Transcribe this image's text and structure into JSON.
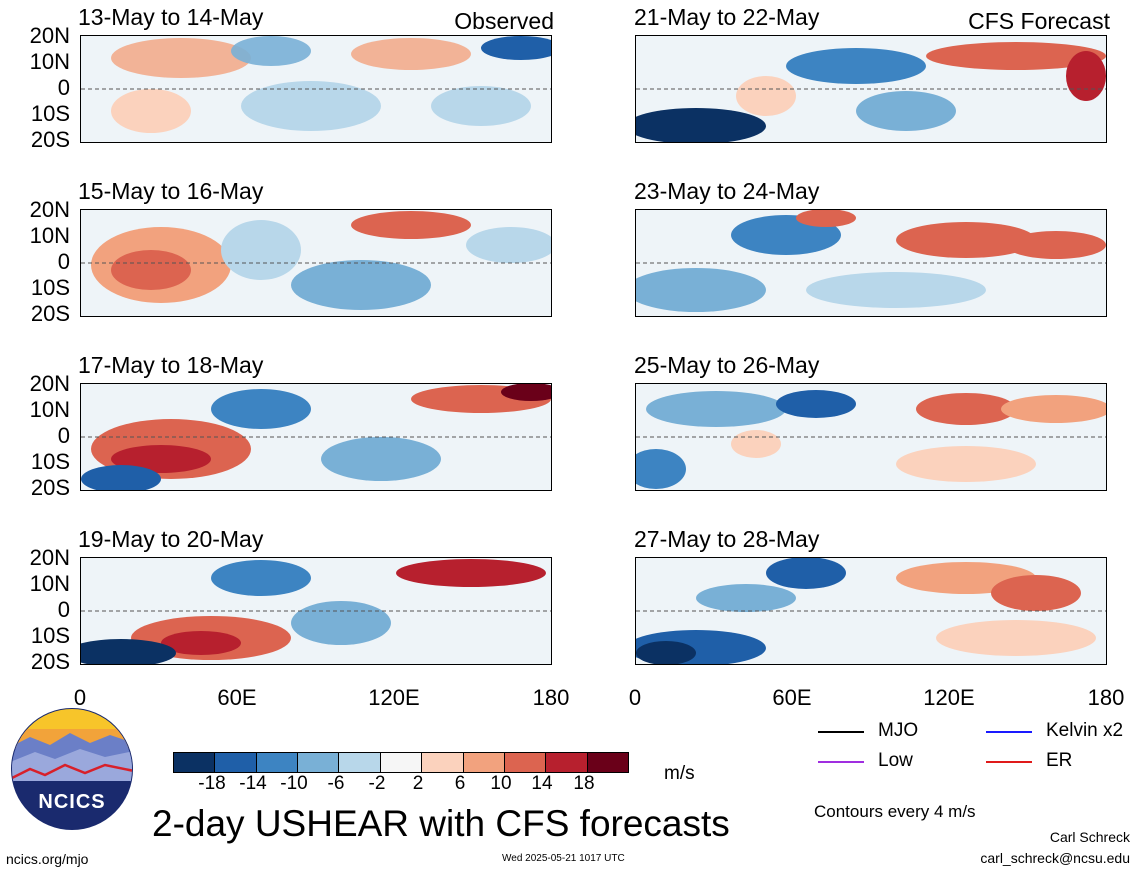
{
  "header": {
    "left_label": "Observed",
    "right_label": "CFS Forecast"
  },
  "panels_left": [
    {
      "title": "13-May to 14-May"
    },
    {
      "title": "15-May to 16-May"
    },
    {
      "title": "17-May to 18-May"
    },
    {
      "title": "19-May to 20-May"
    }
  ],
  "panels_right": [
    {
      "title": "21-May to 22-May"
    },
    {
      "title": "23-May to 24-May"
    },
    {
      "title": "25-May to 26-May"
    },
    {
      "title": "27-May to 28-May"
    }
  ],
  "lat_labels": [
    "20N",
    "10N",
    "0",
    "10S",
    "20S"
  ],
  "lon_labels": [
    "0",
    "60E",
    "120E",
    "180"
  ],
  "colorbar": {
    "unit": "m/s",
    "tick_labels": [
      "-18",
      "-14",
      "-10",
      "-6",
      "-2",
      "2",
      "6",
      "10",
      "14",
      "18"
    ],
    "colors": [
      "#0b3163",
      "#1f5fa8",
      "#3d84c2",
      "#79b0d6",
      "#b8d7ea",
      "#f6f6f6",
      "#fbd2bd",
      "#f2a27e",
      "#dc6450",
      "#b7202e",
      "#6a0019"
    ]
  },
  "legend": {
    "items": [
      {
        "label": "MJO",
        "color": "#000000"
      },
      {
        "label": "Kelvin x2",
        "color": "#1a1aff"
      },
      {
        "label": "Low",
        "color": "#a02ee0"
      },
      {
        "label": "ER",
        "color": "#e01a1a"
      }
    ],
    "note": "Contours every 4 m/s"
  },
  "logo": {
    "text": "NCICS"
  },
  "main_title": "2-day USHEAR with CFS forecasts",
  "footer": {
    "website": "ncics.org/mjo",
    "timestamp": "Wed 2025-05-21 1017 UTC",
    "author": "Carl Schreck",
    "email": "carl_schreck@ncsu.edu"
  }
}
